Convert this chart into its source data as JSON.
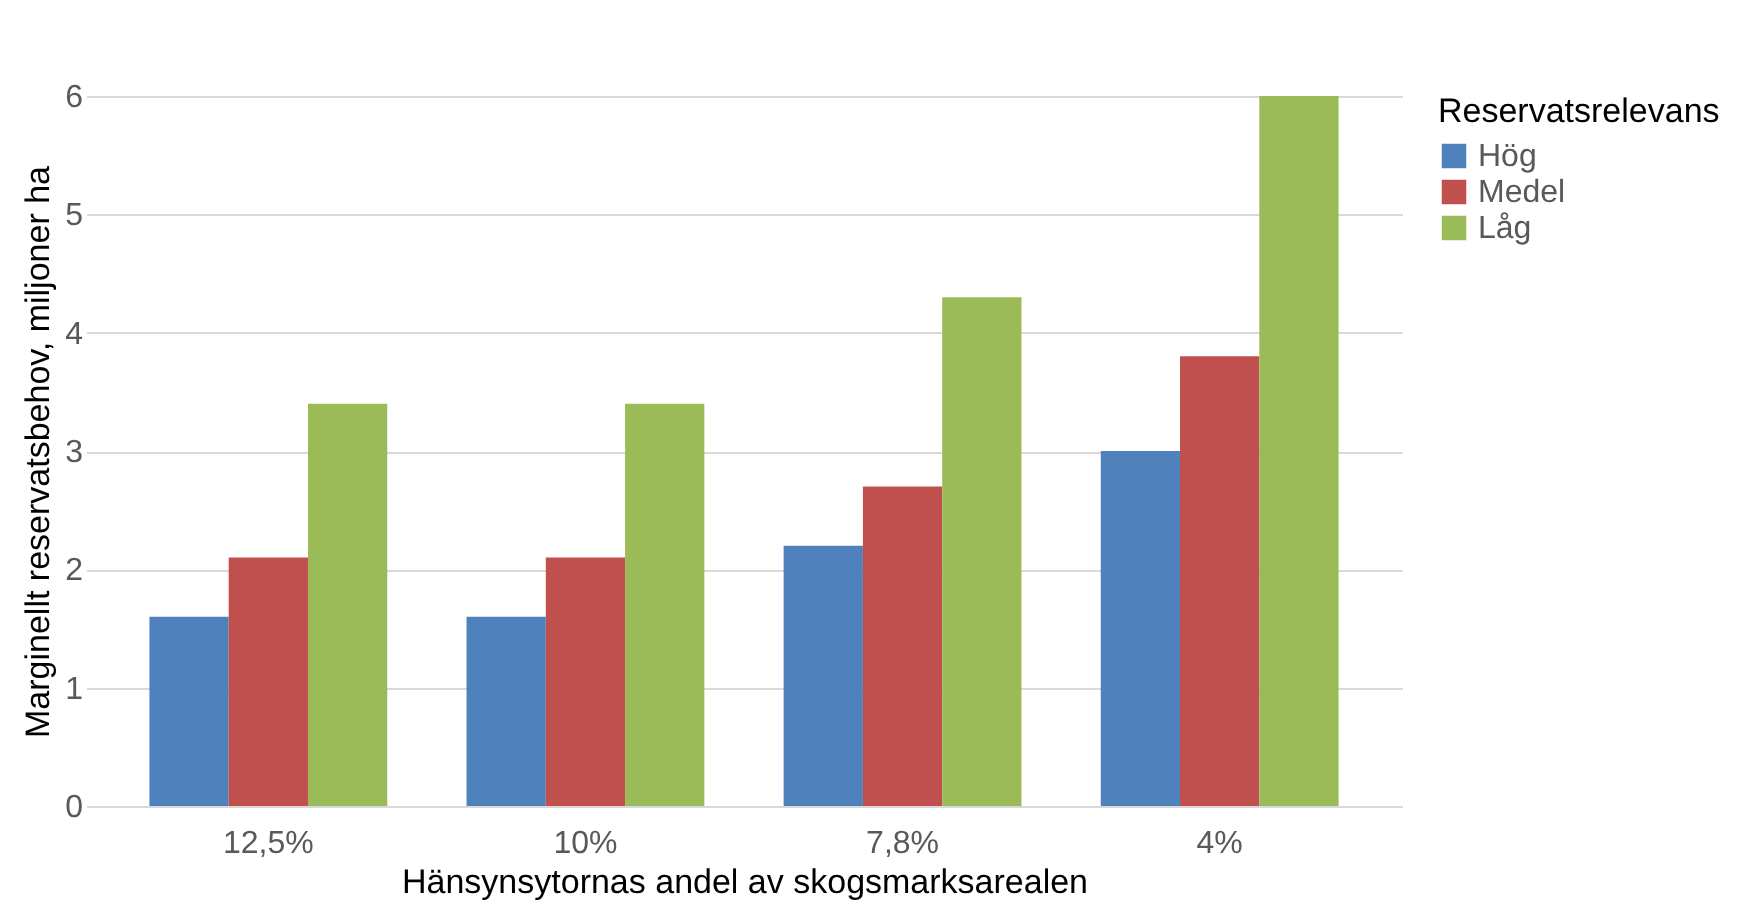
{
  "chart_data": {
    "type": "bar",
    "xlabel": "Hänsynsytornas andel av skogsmarksarealen",
    "ylabel": "Marginellt reservatsbehov, miljoner ha",
    "legend_title": "Reservatsrelevans",
    "categories": [
      "12,5%",
      "10%",
      "7,8%",
      "4%"
    ],
    "series": [
      {
        "name": "Hög",
        "color": "#4f81bd",
        "values": [
          1.6,
          1.6,
          2.2,
          3.0
        ]
      },
      {
        "name": "Medel",
        "color": "#c0504d",
        "values": [
          2.1,
          2.1,
          2.7,
          3.8
        ]
      },
      {
        "name": "Låg",
        "color": "#9bbb59",
        "values": [
          3.4,
          3.4,
          4.3,
          6.0
        ]
      }
    ],
    "ylim": [
      0,
      6
    ],
    "yticks": [
      0,
      1,
      2,
      3,
      4,
      5,
      6
    ],
    "grid": "y",
    "legend": "right"
  }
}
